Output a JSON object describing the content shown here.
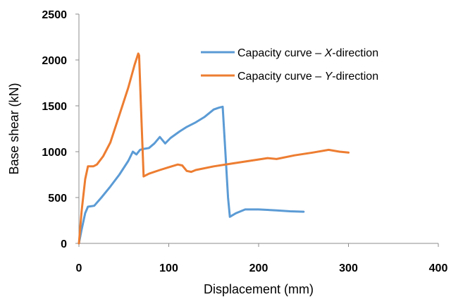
{
  "chart_data": {
    "type": "line",
    "title": "",
    "xlabel": "Displacement (mm)",
    "ylabel": "Base shear (kN)",
    "xlim": [
      0,
      400
    ],
    "ylim": [
      0,
      2500
    ],
    "xticks": [
      0,
      100,
      200,
      300,
      400
    ],
    "yticks": [
      0,
      500,
      1000,
      1500,
      2000,
      2500
    ],
    "grid": false,
    "legend_position": "top-right",
    "series": [
      {
        "name_prefix": "Capacity curve – ",
        "name_italic": "X",
        "name_suffix": "-direction",
        "color": "#5B9BD5",
        "points": [
          [
            0,
            0
          ],
          [
            3,
            150
          ],
          [
            7,
            330
          ],
          [
            10,
            400
          ],
          [
            17,
            410
          ],
          [
            25,
            500
          ],
          [
            35,
            620
          ],
          [
            45,
            750
          ],
          [
            55,
            900
          ],
          [
            60,
            1000
          ],
          [
            64,
            970
          ],
          [
            68,
            1020
          ],
          [
            72,
            1030
          ],
          [
            78,
            1040
          ],
          [
            84,
            1090
          ],
          [
            90,
            1160
          ],
          [
            96,
            1090
          ],
          [
            102,
            1150
          ],
          [
            112,
            1220
          ],
          [
            120,
            1270
          ],
          [
            130,
            1320
          ],
          [
            140,
            1380
          ],
          [
            150,
            1460
          ],
          [
            156,
            1480
          ],
          [
            160,
            1490
          ],
          [
            163,
            1000
          ],
          [
            166,
            500
          ],
          [
            168,
            290
          ],
          [
            175,
            330
          ],
          [
            185,
            370
          ],
          [
            200,
            370
          ],
          [
            220,
            360
          ],
          [
            235,
            350
          ],
          [
            250,
            345
          ]
        ]
      },
      {
        "name_prefix": "Capacity curve – ",
        "name_italic": "Y",
        "name_suffix": "-direction",
        "color": "#ED7D31",
        "points": [
          [
            0,
            0
          ],
          [
            3,
            350
          ],
          [
            7,
            700
          ],
          [
            10,
            840
          ],
          [
            16,
            840
          ],
          [
            20,
            860
          ],
          [
            27,
            950
          ],
          [
            35,
            1100
          ],
          [
            45,
            1400
          ],
          [
            55,
            1700
          ],
          [
            62,
            1950
          ],
          [
            66,
            2070
          ],
          [
            67,
            2050
          ],
          [
            69,
            1500
          ],
          [
            72,
            730
          ],
          [
            78,
            760
          ],
          [
            90,
            800
          ],
          [
            100,
            830
          ],
          [
            110,
            860
          ],
          [
            115,
            850
          ],
          [
            120,
            790
          ],
          [
            125,
            780
          ],
          [
            130,
            800
          ],
          [
            150,
            840
          ],
          [
            170,
            870
          ],
          [
            190,
            900
          ],
          [
            210,
            930
          ],
          [
            220,
            920
          ],
          [
            240,
            960
          ],
          [
            260,
            990
          ],
          [
            278,
            1020
          ],
          [
            290,
            1000
          ],
          [
            300,
            990
          ]
        ]
      }
    ]
  }
}
